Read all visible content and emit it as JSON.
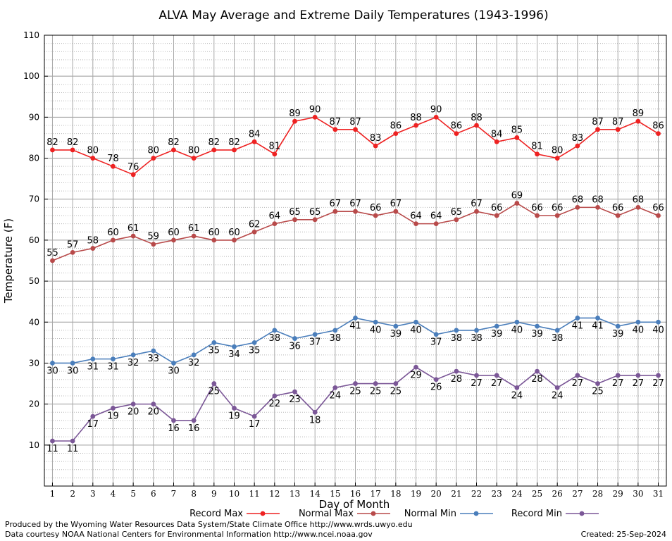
{
  "chart_data": {
    "type": "line",
    "title": "ALVA May Average and Extreme Daily Temperatures (1943-1996)",
    "xlabel": "Day of Month",
    "ylabel": "Temperature (F)",
    "ylim": [
      0,
      110
    ],
    "xlim": [
      0.6,
      31.4
    ],
    "y_ticks": [
      10,
      20,
      30,
      40,
      50,
      60,
      70,
      80,
      90,
      100,
      110
    ],
    "grid": true,
    "legend_position": "bottom",
    "x": [
      1,
      2,
      3,
      4,
      5,
      6,
      7,
      8,
      9,
      10,
      11,
      12,
      13,
      14,
      15,
      16,
      17,
      18,
      19,
      20,
      21,
      22,
      23,
      24,
      25,
      26,
      27,
      28,
      29,
      30,
      31
    ],
    "series": [
      {
        "name": "Record Max",
        "color": "#ee2222",
        "label_position": "above",
        "values": [
          82,
          82,
          80,
          78,
          76,
          80,
          82,
          80,
          82,
          82,
          84,
          81,
          89,
          90,
          87,
          87,
          83,
          86,
          88,
          90,
          86,
          88,
          84,
          85,
          81,
          80,
          83,
          87,
          87,
          89,
          86
        ]
      },
      {
        "name": "Normal Max",
        "color": "#b84a4a",
        "label_position": "above",
        "values": [
          55,
          57,
          58,
          60,
          61,
          59,
          60,
          61,
          60,
          60,
          62,
          64,
          65,
          65,
          67,
          67,
          66,
          67,
          64,
          64,
          65,
          67,
          66,
          69,
          66,
          66,
          68,
          68,
          66,
          68,
          66
        ]
      },
      {
        "name": "Normal Min",
        "color": "#4a7ebb",
        "label_position": "below",
        "values": [
          30,
          30,
          31,
          31,
          32,
          33,
          30,
          32,
          35,
          34,
          35,
          38,
          36,
          37,
          38,
          41,
          40,
          39,
          40,
          37,
          38,
          38,
          39,
          40,
          39,
          38,
          41,
          41,
          39,
          40,
          40
        ]
      },
      {
        "name": "Record Min",
        "color": "#7b5797",
        "label_position": "below",
        "values": [
          11,
          11,
          17,
          19,
          20,
          20,
          16,
          16,
          25,
          19,
          17,
          22,
          23,
          18,
          24,
          25,
          25,
          25,
          29,
          26,
          28,
          27,
          27,
          24,
          28,
          24,
          27,
          25,
          27,
          27,
          27
        ]
      }
    ]
  },
  "footer": {
    "produced_by": "Produced by the Wyoming Water Resources Data System/State Climate Office http://www.wrds.uwyo.edu",
    "data_courtesy": "Data courtesy NOAA National Centers for Environmental Information http://www.ncei.noaa.gov",
    "created": "Created:  25-Sep-2024"
  }
}
